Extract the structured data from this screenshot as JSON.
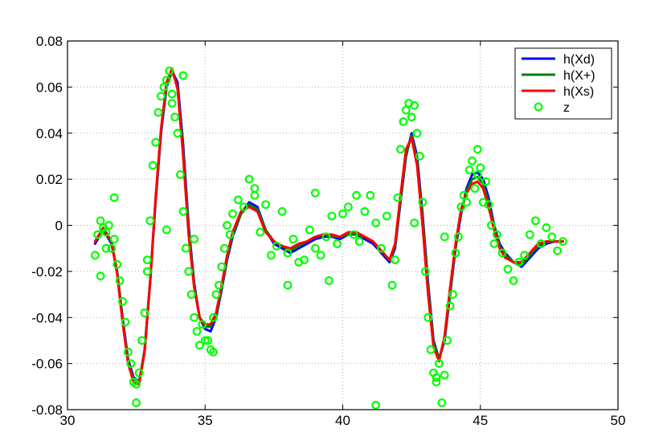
{
  "chart_data": {
    "type": "line",
    "title": "",
    "xlabel": "",
    "ylabel": "",
    "xlim": [
      30,
      50
    ],
    "ylim": [
      -0.08,
      0.08
    ],
    "xticks": [
      30,
      35,
      40,
      45,
      50
    ],
    "xtick_labels": [
      "30",
      "35",
      "40",
      "45",
      "50"
    ],
    "yticks": [
      -0.08,
      -0.06,
      -0.04,
      -0.02,
      0,
      0.02,
      0.04,
      0.06,
      0.08
    ],
    "ytick_labels": [
      "-0.08",
      "-0.06",
      "-0.04",
      "-0.02",
      "0",
      "0.02",
      "0.04",
      "0.06",
      "0.08"
    ],
    "grid": true,
    "legend_position": "top-right",
    "series": [
      {
        "name": "h(Xd)",
        "type": "line",
        "color": "#0000ff",
        "x": [
          31.0,
          31.3,
          31.6,
          31.8,
          32.0,
          32.2,
          32.4,
          32.6,
          32.8,
          33.0,
          33.2,
          33.4,
          33.6,
          33.8,
          34.0,
          34.2,
          34.4,
          34.6,
          34.8,
          35.0,
          35.2,
          35.4,
          35.6,
          35.8,
          36.0,
          36.3,
          36.6,
          36.9,
          37.2,
          37.5,
          37.8,
          38.1,
          38.4,
          38.7,
          39.0,
          39.3,
          39.6,
          39.9,
          40.2,
          40.5,
          40.8,
          41.1,
          41.4,
          41.7,
          41.9,
          42.1,
          42.3,
          42.5,
          42.7,
          42.9,
          43.1,
          43.3,
          43.5,
          43.7,
          43.9,
          44.1,
          44.3,
          44.5,
          44.7,
          44.9,
          45.1,
          45.3,
          45.5,
          45.7,
          45.9,
          46.2,
          46.5,
          46.8,
          47.1,
          47.4,
          47.7,
          48.0
        ],
        "y": [
          -0.008,
          -0.002,
          -0.008,
          -0.02,
          -0.04,
          -0.058,
          -0.066,
          -0.068,
          -0.055,
          -0.025,
          0.01,
          0.04,
          0.06,
          0.067,
          0.062,
          0.035,
          0.0,
          -0.025,
          -0.04,
          -0.045,
          -0.046,
          -0.04,
          -0.028,
          -0.015,
          -0.005,
          0.005,
          0.01,
          0.008,
          -0.002,
          -0.008,
          -0.01,
          -0.012,
          -0.01,
          -0.008,
          -0.006,
          -0.005,
          -0.005,
          -0.006,
          -0.004,
          -0.004,
          -0.006,
          -0.008,
          -0.012,
          -0.016,
          -0.01,
          0.01,
          0.03,
          0.04,
          0.03,
          0.005,
          -0.025,
          -0.05,
          -0.058,
          -0.05,
          -0.03,
          -0.01,
          0.005,
          0.016,
          0.022,
          0.023,
          0.02,
          0.012,
          0.0,
          -0.008,
          -0.012,
          -0.016,
          -0.018,
          -0.014,
          -0.01,
          -0.008,
          -0.007,
          -0.007
        ]
      },
      {
        "name": "h(X+)",
        "type": "line",
        "color": "#008000",
        "x": [
          31.0,
          31.3,
          31.6,
          31.8,
          32.0,
          32.2,
          32.4,
          32.6,
          32.8,
          33.0,
          33.2,
          33.4,
          33.6,
          33.8,
          34.0,
          34.2,
          34.4,
          34.6,
          34.8,
          35.0,
          35.2,
          35.4,
          35.6,
          35.8,
          36.0,
          36.3,
          36.6,
          36.9,
          37.2,
          37.5,
          37.8,
          38.1,
          38.4,
          38.7,
          39.0,
          39.3,
          39.6,
          39.9,
          40.2,
          40.5,
          40.8,
          41.1,
          41.4,
          41.7,
          41.9,
          42.1,
          42.3,
          42.5,
          42.7,
          42.9,
          43.1,
          43.3,
          43.5,
          43.7,
          43.9,
          44.1,
          44.3,
          44.5,
          44.7,
          44.9,
          45.1,
          45.3,
          45.5,
          45.7,
          45.9,
          46.2,
          46.5,
          46.8,
          47.1,
          47.4,
          47.7,
          48.0
        ],
        "y": [
          -0.007,
          -0.002,
          -0.007,
          -0.02,
          -0.041,
          -0.059,
          -0.067,
          -0.068,
          -0.054,
          -0.024,
          0.011,
          0.041,
          0.061,
          0.067,
          0.06,
          0.032,
          -0.002,
          -0.026,
          -0.04,
          -0.044,
          -0.044,
          -0.039,
          -0.027,
          -0.014,
          -0.004,
          0.005,
          0.009,
          0.007,
          -0.002,
          -0.007,
          -0.009,
          -0.011,
          -0.009,
          -0.007,
          -0.005,
          -0.004,
          -0.005,
          -0.005,
          -0.004,
          -0.004,
          -0.005,
          -0.007,
          -0.011,
          -0.015,
          -0.009,
          0.011,
          0.031,
          0.039,
          0.028,
          0.003,
          -0.027,
          -0.051,
          -0.058,
          -0.049,
          -0.029,
          -0.009,
          0.006,
          0.015,
          0.02,
          0.021,
          0.018,
          0.01,
          -0.001,
          -0.009,
          -0.013,
          -0.016,
          -0.017,
          -0.013,
          -0.009,
          -0.007,
          -0.007,
          -0.007
        ]
      },
      {
        "name": "h(Xs)",
        "type": "line",
        "color": "#ff0000",
        "x": [
          31.0,
          31.3,
          31.6,
          31.8,
          32.0,
          32.2,
          32.4,
          32.6,
          32.8,
          33.0,
          33.2,
          33.4,
          33.6,
          33.8,
          34.0,
          34.2,
          34.4,
          34.6,
          34.8,
          35.0,
          35.2,
          35.4,
          35.6,
          35.8,
          36.0,
          36.3,
          36.6,
          36.9,
          37.2,
          37.5,
          37.8,
          38.1,
          38.4,
          38.7,
          39.0,
          39.3,
          39.6,
          39.9,
          40.2,
          40.5,
          40.8,
          41.1,
          41.4,
          41.7,
          41.9,
          42.1,
          42.3,
          42.5,
          42.7,
          42.9,
          43.1,
          43.3,
          43.5,
          43.7,
          43.9,
          44.1,
          44.3,
          44.5,
          44.7,
          44.9,
          45.1,
          45.3,
          45.5,
          45.7,
          45.9,
          46.2,
          46.5,
          46.8,
          47.1,
          47.4,
          47.7,
          48.0
        ],
        "y": [
          -0.007,
          -0.001,
          -0.007,
          -0.021,
          -0.042,
          -0.06,
          -0.068,
          -0.069,
          -0.055,
          -0.025,
          0.012,
          0.042,
          0.062,
          0.068,
          0.059,
          0.03,
          -0.004,
          -0.027,
          -0.04,
          -0.043,
          -0.043,
          -0.038,
          -0.026,
          -0.013,
          -0.003,
          0.006,
          0.008,
          0.006,
          -0.003,
          -0.007,
          -0.009,
          -0.01,
          -0.008,
          -0.007,
          -0.005,
          -0.004,
          -0.004,
          -0.005,
          -0.003,
          -0.003,
          -0.005,
          -0.007,
          -0.011,
          -0.015,
          -0.008,
          0.013,
          0.033,
          0.038,
          0.026,
          0.0,
          -0.03,
          -0.053,
          -0.059,
          -0.048,
          -0.027,
          -0.008,
          0.007,
          0.014,
          0.018,
          0.019,
          0.016,
          0.008,
          -0.002,
          -0.01,
          -0.014,
          -0.016,
          -0.016,
          -0.012,
          -0.008,
          -0.007,
          -0.007,
          -0.007
        ]
      },
      {
        "name": "z",
        "type": "scatter",
        "color": "#00ff00",
        "x": [
          31.0,
          31.1,
          31.2,
          31.3,
          31.4,
          31.5,
          31.6,
          31.7,
          31.8,
          31.9,
          32.0,
          32.1,
          32.2,
          32.3,
          32.4,
          32.5,
          32.6,
          32.7,
          32.8,
          32.9,
          33.0,
          33.1,
          33.2,
          33.3,
          33.4,
          33.5,
          33.6,
          33.7,
          33.8,
          33.9,
          34.0,
          34.1,
          34.2,
          34.3,
          34.4,
          34.5,
          34.6,
          34.7,
          34.8,
          34.9,
          35.0,
          35.1,
          35.2,
          35.3,
          35.4,
          35.5,
          35.6,
          35.7,
          35.8,
          35.9,
          36.0,
          36.2,
          36.4,
          36.6,
          36.8,
          37.0,
          37.2,
          37.4,
          37.6,
          37.8,
          38.0,
          38.2,
          38.4,
          38.6,
          38.8,
          39.0,
          39.2,
          39.4,
          39.6,
          39.8,
          40.0,
          40.2,
          40.4,
          40.6,
          40.8,
          41.0,
          41.2,
          41.4,
          41.6,
          41.8,
          41.9,
          42.0,
          42.1,
          42.2,
          42.3,
          42.4,
          42.5,
          42.6,
          42.7,
          42.8,
          42.9,
          43.0,
          43.1,
          43.2,
          43.3,
          43.4,
          43.5,
          43.6,
          43.7,
          43.8,
          43.9,
          44.0,
          44.1,
          44.2,
          44.3,
          44.4,
          44.5,
          44.6,
          44.7,
          44.8,
          44.9,
          45.0,
          45.1,
          45.2,
          45.3,
          45.4,
          45.5,
          45.6,
          45.8,
          46.0,
          46.2,
          46.4,
          46.6,
          46.8,
          47.0,
          47.2,
          47.4,
          47.6,
          47.8,
          48.0,
          31.2,
          31.7,
          32.5,
          33.8,
          34.2,
          35.3,
          36.8,
          39.5,
          40.5,
          42.6,
          43.4,
          44.9,
          31.4,
          32.9,
          33.6,
          34.6,
          38.0,
          39.0,
          41.2,
          43.7
        ],
        "y": [
          -0.013,
          -0.004,
          -0.022,
          -0.001,
          -0.003,
          0.0,
          -0.01,
          -0.006,
          -0.017,
          -0.024,
          -0.033,
          -0.042,
          -0.055,
          -0.06,
          -0.068,
          -0.069,
          -0.064,
          -0.05,
          -0.038,
          -0.02,
          0.002,
          0.026,
          0.036,
          0.049,
          0.056,
          0.06,
          0.063,
          0.067,
          0.057,
          0.047,
          0.04,
          0.022,
          0.006,
          -0.01,
          -0.02,
          -0.03,
          -0.04,
          -0.046,
          -0.052,
          -0.043,
          -0.05,
          -0.05,
          -0.054,
          -0.04,
          -0.03,
          -0.026,
          -0.018,
          -0.01,
          0.0,
          -0.004,
          0.005,
          0.011,
          0.008,
          0.02,
          0.013,
          -0.003,
          0.009,
          -0.013,
          -0.009,
          0.006,
          -0.012,
          -0.006,
          -0.016,
          -0.015,
          -0.002,
          -0.01,
          -0.013,
          -0.005,
          0.004,
          -0.008,
          0.005,
          0.008,
          -0.004,
          -0.007,
          0.006,
          0.013,
          0.001,
          -0.01,
          0.004,
          -0.026,
          -0.015,
          0.012,
          0.033,
          0.045,
          0.05,
          0.053,
          0.047,
          0.052,
          0.04,
          0.03,
          0.01,
          -0.02,
          -0.04,
          -0.054,
          -0.064,
          -0.066,
          -0.06,
          -0.077,
          -0.065,
          -0.05,
          -0.035,
          -0.03,
          -0.012,
          -0.005,
          0.008,
          0.013,
          0.01,
          0.024,
          0.028,
          0.016,
          0.022,
          0.025,
          0.01,
          0.019,
          0.009,
          0.0,
          -0.008,
          -0.004,
          -0.012,
          -0.019,
          -0.024,
          -0.016,
          -0.013,
          -0.004,
          0.002,
          -0.008,
          -0.001,
          -0.005,
          -0.011,
          -0.007,
          0.002,
          0.012,
          -0.077,
          0.053,
          0.065,
          -0.055,
          0.016,
          -0.024,
          0.013,
          0.001,
          -0.068,
          0.033,
          -0.01,
          -0.015,
          -0.002,
          -0.006,
          -0.026,
          0.014,
          -0.078,
          -0.005
        ]
      }
    ]
  }
}
